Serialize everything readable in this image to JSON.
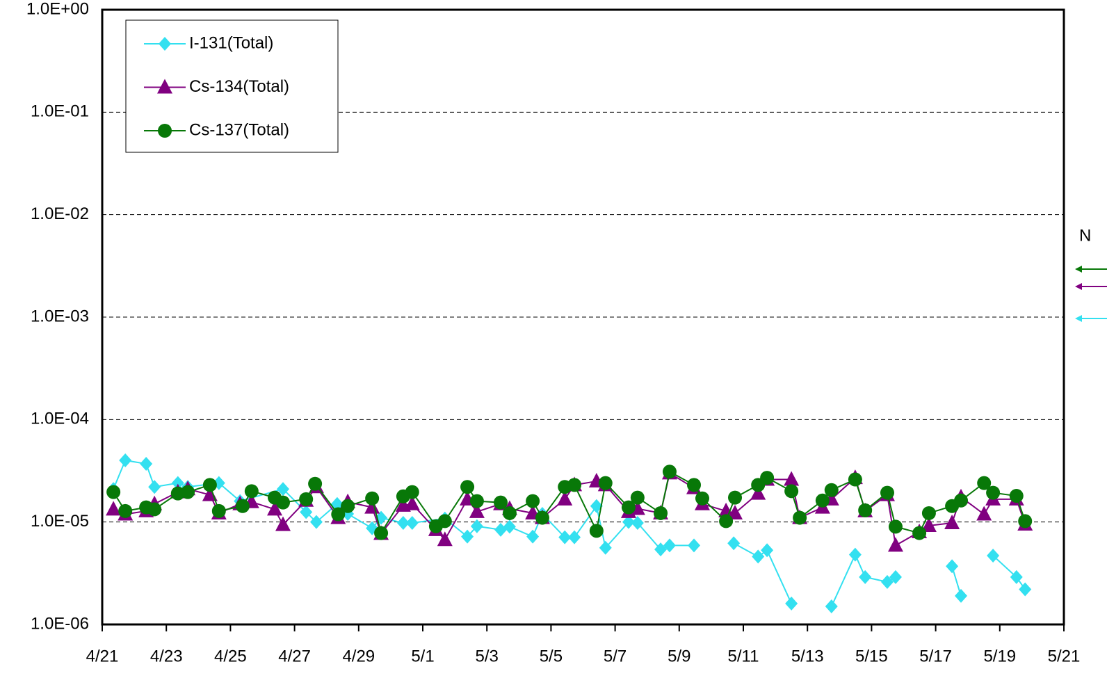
{
  "chart_data": {
    "type": "line",
    "log": true,
    "grid": true,
    "legend": "top-left",
    "annotation": "N",
    "xlim": [
      0,
      30
    ],
    "xticks": [
      {
        "value": 0,
        "label": "4/21"
      },
      {
        "value": 2,
        "label": "4/23"
      },
      {
        "value": 4,
        "label": "4/25"
      },
      {
        "value": 6,
        "label": "4/27"
      },
      {
        "value": 8,
        "label": "4/29"
      },
      {
        "value": 10,
        "label": "5/1"
      },
      {
        "value": 12,
        "label": "5/3"
      },
      {
        "value": 14,
        "label": "5/5"
      },
      {
        "value": 16,
        "label": "5/7"
      },
      {
        "value": 18,
        "label": "5/9"
      },
      {
        "value": 20,
        "label": "5/11"
      },
      {
        "value": 22,
        "label": "5/13"
      },
      {
        "value": 24,
        "label": "5/15"
      },
      {
        "value": 26,
        "label": "5/17"
      },
      {
        "value": 28,
        "label": "5/19"
      },
      {
        "value": 30,
        "label": "5/21"
      }
    ],
    "ylim": [
      1e-06,
      1
    ],
    "yticks": [
      {
        "value": 1e-06,
        "label": "1.0E-06"
      },
      {
        "value": 1e-05,
        "label": "1.0E-05"
      },
      {
        "value": 0.0001,
        "label": "1.0E-04"
      },
      {
        "value": 0.001,
        "label": "1.0E-03"
      },
      {
        "value": 0.01,
        "label": "1.0E-02"
      },
      {
        "value": 0.1,
        "label": "1.0E-01"
      },
      {
        "value": 1,
        "label": "1.0E+00"
      }
    ],
    "series": [
      {
        "name": "I-131(Total)",
        "color": "#33e0f0",
        "marker": "diamond",
        "x": [
          0.35,
          0.72,
          1.37,
          1.63,
          2.36,
          2.67,
          3.64,
          4.3,
          5.64,
          6.36,
          6.68,
          7.33,
          7.66,
          8.42,
          8.7,
          9.39,
          9.67,
          10.69,
          11.39,
          11.69,
          12.43,
          12.71,
          13.43,
          13.73,
          14.43,
          14.73,
          15.42,
          15.7,
          16.42,
          16.7,
          17.42,
          17.7,
          18.46,
          null,
          19.7,
          20.46,
          20.74,
          21.5,
          null,
          22.75,
          23.49,
          23.8,
          24.49,
          24.75,
          null,
          26.51,
          26.79,
          null,
          27.79,
          28.52,
          28.79
        ],
        "values": [
          2.1e-05,
          4e-05,
          3.7e-05,
          2.2e-05,
          2.4e-05,
          2.2e-05,
          2.4e-05,
          1.6e-05,
          2.1e-05,
          1.25e-05,
          1e-05,
          1.5e-05,
          1.2e-05,
          8.7e-06,
          1.1e-05,
          9.8e-06,
          9.8e-06,
          1.08e-05,
          7.2e-06,
          9.1e-06,
          8.4e-06,
          9e-06,
          7.2e-06,
          1.2e-05,
          7.1e-06,
          7.1e-06,
          1.43e-05,
          5.6e-06,
          1e-05,
          9.8e-06,
          5.4e-06,
          5.9e-06,
          5.9e-06,
          null,
          6.2e-06,
          4.6e-06,
          5.3e-06,
          1.6e-06,
          null,
          1.5e-06,
          4.8e-06,
          2.9e-06,
          2.6e-06,
          2.9e-06,
          null,
          3.7e-06,
          1.9e-06,
          null,
          4.7e-06,
          2.9e-06,
          2.2e-06
        ]
      },
      {
        "name": "Cs-134(Total)",
        "color": "#800080",
        "marker": "triangle",
        "x": [
          0.35,
          0.72,
          1.37,
          1.63,
          2.36,
          2.67,
          3.36,
          3.64,
          4.3,
          4.66,
          5.38,
          5.64,
          6.36,
          6.68,
          7.36,
          7.66,
          8.42,
          8.7,
          9.39,
          9.67,
          10.41,
          10.69,
          11.39,
          11.69,
          12.43,
          12.71,
          13.43,
          13.73,
          14.43,
          14.73,
          15.42,
          15.7,
          16.42,
          16.7,
          17.42,
          17.7,
          18.46,
          18.72,
          19.46,
          19.74,
          20.46,
          20.74,
          21.5,
          21.76,
          22.47,
          22.75,
          23.49,
          23.8,
          24.49,
          24.75,
          25.49,
          25.79,
          26.51,
          26.79,
          27.51,
          27.79,
          28.52,
          28.79
        ],
        "values": [
          1.33e-05,
          1.19e-05,
          1.28e-05,
          1.5e-05,
          1.96e-05,
          2.1e-05,
          1.84e-05,
          1.22e-05,
          1.5e-05,
          1.57e-05,
          1.33e-05,
          9.4e-06,
          1.62e-05,
          2.2e-05,
          1.1e-05,
          1.57e-05,
          1.39e-05,
          7.7e-06,
          1.45e-05,
          1.5e-05,
          8.4e-06,
          6.7e-06,
          1.67e-05,
          1.26e-05,
          1.5e-05,
          1.35e-05,
          1.22e-05,
          1.1e-05,
          1.67e-05,
          2.3e-05,
          2.5e-05,
          2.3e-05,
          1.26e-05,
          1.35e-05,
          1.22e-05,
          3e-05,
          2.15e-05,
          1.5e-05,
          1.28e-05,
          1.22e-05,
          1.9e-05,
          2.6e-05,
          2.6e-05,
          1.1e-05,
          1.39e-05,
          1.67e-05,
          2.7e-05,
          1.28e-05,
          1.84e-05,
          5.9e-06,
          8e-06,
          9.2e-06,
          9.8e-06,
          1.75e-05,
          1.19e-05,
          1.67e-05,
          1.67e-05,
          9.5e-06
        ]
      },
      {
        "name": "Cs-137(Total)",
        "color": "#087808",
        "marker": "circle",
        "x": [
          0.35,
          0.72,
          1.37,
          1.63,
          2.36,
          2.67,
          3.36,
          3.64,
          4.38,
          4.66,
          5.38,
          5.64,
          6.36,
          6.64,
          7.36,
          7.66,
          8.42,
          8.7,
          9.39,
          9.67,
          10.41,
          10.69,
          11.39,
          11.69,
          12.43,
          12.71,
          13.43,
          13.73,
          14.43,
          14.73,
          15.42,
          15.7,
          16.42,
          16.7,
          17.42,
          17.7,
          18.46,
          18.72,
          19.46,
          19.74,
          20.46,
          20.74,
          21.5,
          21.76,
          22.47,
          22.75,
          23.49,
          23.8,
          24.49,
          24.75,
          25.49,
          25.79,
          26.51,
          26.79,
          27.51,
          27.79,
          28.52,
          28.79
        ],
        "values": [
          1.96e-05,
          1.28e-05,
          1.39e-05,
          1.33e-05,
          1.9e-05,
          1.96e-05,
          2.3e-05,
          1.28e-05,
          1.43e-05,
          2e-05,
          1.73e-05,
          1.55e-05,
          1.67e-05,
          2.36e-05,
          1.19e-05,
          1.43e-05,
          1.7e-05,
          7.8e-06,
          1.78e-05,
          1.96e-05,
          9.1e-06,
          1.02e-05,
          2.2e-05,
          1.6e-05,
          1.55e-05,
          1.22e-05,
          1.6e-05,
          1.1e-05,
          2.2e-05,
          2.3e-05,
          8.2e-06,
          2.4e-05,
          1.39e-05,
          1.73e-05,
          1.22e-05,
          3.1e-05,
          2.3e-05,
          1.7e-05,
          1.02e-05,
          1.73e-05,
          2.3e-05,
          2.7e-05,
          2e-05,
          1.1e-05,
          1.62e-05,
          2.05e-05,
          2.6e-05,
          1.3e-05,
          1.93e-05,
          9e-06,
          7.8e-06,
          1.22e-05,
          1.43e-05,
          1.62e-05,
          2.4e-05,
          1.93e-05,
          1.8e-05,
          1.02e-05
        ]
      }
    ]
  }
}
